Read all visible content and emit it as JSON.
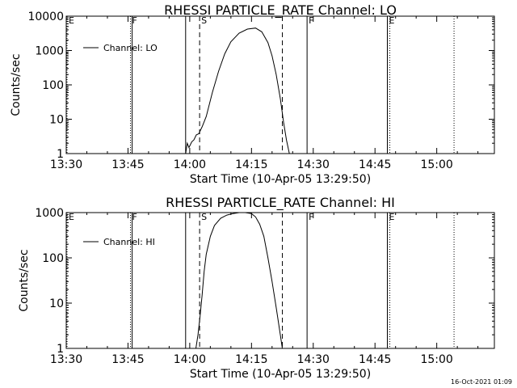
{
  "chart_data": [
    {
      "type": "line",
      "title": "RHESSI PARTICLE_RATE Channel: LO",
      "xlabel": "Start Time (10-Apr-05 13:29:50)",
      "ylabel": "Counts/sec",
      "yscale": "log",
      "ylim": [
        1,
        10000
      ],
      "xlim_minutes": [
        0,
        104
      ],
      "y_ticks": [
        {
          "value": 1,
          "label": "1"
        },
        {
          "value": 10,
          "label": "10"
        },
        {
          "value": 100,
          "label": "100"
        },
        {
          "value": 1000,
          "label": "1000"
        },
        {
          "value": 10000,
          "label": "10000"
        }
      ],
      "x_ticks": [
        "13:30",
        "13:45",
        "14:00",
        "14:15",
        "14:30",
        "14:45",
        "15:00"
      ],
      "legend": {
        "label": "Channel: LO",
        "placement": "top-left"
      },
      "markers": [
        {
          "label": "E",
          "x": 0.2,
          "style": "dotted"
        },
        {
          "label": "F",
          "x": 15.6,
          "style": "dotted"
        },
        {
          "label": "",
          "x": 16.0,
          "style": "solid"
        },
        {
          "label": "",
          "x": 29.0,
          "style": "solid"
        },
        {
          "label": "S",
          "x": 32.4,
          "style": "dashed"
        },
        {
          "label": "",
          "x": 52.5,
          "style": "dashed"
        },
        {
          "label": "F",
          "x": 58.5,
          "style": "solid"
        },
        {
          "label": "E",
          "x": 78.0,
          "style": "solid"
        },
        {
          "label": "",
          "x": 78.6,
          "style": "dotted"
        },
        {
          "label": "",
          "x": 94.2,
          "style": "dotted"
        }
      ],
      "series": [
        {
          "name": "Channel: LO",
          "x": [
            29.0,
            29.4,
            29.8,
            30.5,
            31.0,
            31.6,
            32.2,
            33.0,
            34.0,
            35.5,
            37.0,
            38.5,
            40.0,
            42.0,
            44.0,
            46.0,
            47.5,
            49.0,
            50.0,
            51.0,
            52.0,
            52.8,
            53.5,
            54.2
          ],
          "y": [
            1,
            2,
            1.5,
            2.2,
            2.5,
            3.5,
            3.8,
            6,
            12,
            60,
            250,
            800,
            1800,
            3200,
            4200,
            4500,
            3500,
            1700,
            700,
            200,
            40,
            8,
            2.5,
            1
          ]
        }
      ]
    },
    {
      "type": "line",
      "title": "RHESSI PARTICLE_RATE Channel: HI",
      "xlabel": "Start Time (10-Apr-05 13:29:50)",
      "ylabel": "Counts/sec",
      "yscale": "log",
      "ylim": [
        1,
        1000
      ],
      "xlim_minutes": [
        0,
        104
      ],
      "y_ticks": [
        {
          "value": 1,
          "label": "1"
        },
        {
          "value": 10,
          "label": "10"
        },
        {
          "value": 100,
          "label": "100"
        },
        {
          "value": 1000,
          "label": "1000"
        }
      ],
      "x_ticks": [
        "13:30",
        "13:45",
        "14:00",
        "14:15",
        "14:30",
        "14:45",
        "15:00"
      ],
      "legend": {
        "label": "Channel: HI",
        "placement": "top-left"
      },
      "markers": [
        {
          "label": "E",
          "x": 0.2,
          "style": "dotted"
        },
        {
          "label": "F",
          "x": 15.6,
          "style": "dotted"
        },
        {
          "label": "",
          "x": 16.0,
          "style": "solid"
        },
        {
          "label": "",
          "x": 29.0,
          "style": "solid"
        },
        {
          "label": "S",
          "x": 32.4,
          "style": "dashed"
        },
        {
          "label": "",
          "x": 52.5,
          "style": "dashed"
        },
        {
          "label": "F",
          "x": 58.5,
          "style": "solid"
        },
        {
          "label": "E",
          "x": 78.0,
          "style": "solid"
        },
        {
          "label": "",
          "x": 78.6,
          "style": "dotted"
        },
        {
          "label": "",
          "x": 94.2,
          "style": "dotted"
        }
      ],
      "series": [
        {
          "name": "Channel: HI",
          "x": [
            31.5,
            32.0,
            32.5,
            33.0,
            33.5,
            34.0,
            35.0,
            36.0,
            37.5,
            39.0,
            40.5,
            42.0,
            43.5,
            45.0,
            46.0,
            47.0,
            48.0,
            49.0,
            50.0,
            51.0,
            52.0,
            52.5
          ],
          "y": [
            1,
            2,
            5,
            15,
            50,
            120,
            300,
            520,
            750,
            880,
            950,
            1000,
            1000,
            950,
            800,
            550,
            300,
            100,
            30,
            8,
            2,
            1
          ]
        }
      ]
    }
  ],
  "footer": {
    "timestamp": "16-Oct-2021 01:09"
  },
  "colors": {
    "line": "#000000",
    "background": "#ffffff"
  }
}
